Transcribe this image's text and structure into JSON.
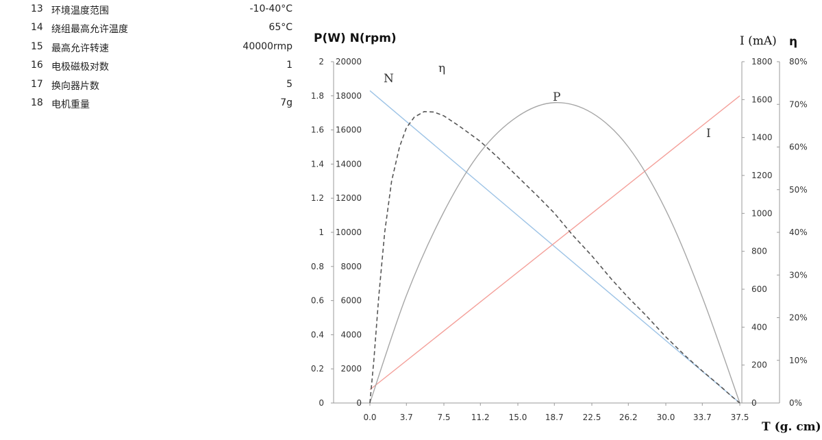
{
  "specs": [
    {
      "num": "13",
      "label": "环境温度范围",
      "value": "-10-40°C"
    },
    {
      "num": "14",
      "label": "绕组最高允许温度",
      "value": "65°C"
    },
    {
      "num": "15",
      "label": "最高允许转速",
      "value": "40000rmp"
    },
    {
      "num": "16",
      "label": "电极磁极对数",
      "value": "1"
    },
    {
      "num": "17",
      "label": "换向器片数",
      "value": "5"
    },
    {
      "num": "18",
      "label": "电机重量",
      "value": "7g"
    }
  ],
  "chart_data": {
    "type": "line",
    "axes": {
      "left_outer_title": "P(W) N(rpm)",
      "right_inner_title": "I (mA)",
      "right_outer_title": "η",
      "x_title": "T (g. cm)",
      "x_ticks": [
        "0.0",
        "3.7",
        "7.5",
        "11.2",
        "15.0",
        "18.7",
        "22.5",
        "26.2",
        "30.0",
        "33.7",
        "37.5"
      ],
      "x_range": [
        0,
        37.5
      ],
      "p_ticks": [
        "0",
        "0.2",
        "0.4",
        "0.6",
        "0.8",
        "1",
        "1.2",
        "1.4",
        "1.6",
        "1.8",
        "2"
      ],
      "p_range": [
        0,
        2
      ],
      "n_ticks": [
        "0",
        "2000",
        "4000",
        "6000",
        "8000",
        "10000",
        "12000",
        "14000",
        "16000",
        "18000",
        "20000"
      ],
      "n_range": [
        0,
        20000
      ],
      "i_ticks": [
        "0",
        "200",
        "400",
        "600",
        "800",
        "1000",
        "1200",
        "1400",
        "1600",
        "1800"
      ],
      "i_range": [
        0,
        1800
      ],
      "eta_ticks": [
        "0%",
        "10%",
        "20%",
        "30%",
        "40%",
        "50%",
        "60%",
        "70%",
        "80%"
      ],
      "eta_range": [
        0,
        80
      ]
    },
    "series": [
      {
        "name": "N",
        "axis": "n",
        "color": "#9dc3e6",
        "dash": false,
        "x": [
          0,
          37.5
        ],
        "y": [
          18300,
          0
        ]
      },
      {
        "name": "I",
        "axis": "i",
        "color": "#f4a09a",
        "dash": false,
        "x": [
          0,
          37.5
        ],
        "y": [
          70,
          1620
        ]
      },
      {
        "name": "P",
        "axis": "p",
        "color": "#a6a6a6",
        "dash": false,
        "x": [
          0,
          3.7,
          7.5,
          11.2,
          15.0,
          18.7,
          22.5,
          26.2,
          30.0,
          33.7,
          37.5
        ],
        "y": [
          0,
          0.63,
          1.12,
          1.47,
          1.68,
          1.76,
          1.7,
          1.5,
          1.13,
          0.62,
          0
        ]
      },
      {
        "name": "η",
        "axis": "eta",
        "color": "#555555",
        "dash": true,
        "x": [
          0,
          0.4,
          0.9,
          1.5,
          2.2,
          3.0,
          3.7,
          4.5,
          5.5,
          6.5,
          7.5,
          9.0,
          11.2,
          13.0,
          15.0,
          17.0,
          18.7,
          20.5,
          22.5,
          24.5,
          26.2,
          28.0,
          30.0,
          32.0,
          33.7,
          35.5,
          36.7,
          37.5
        ],
        "y": [
          0,
          10,
          25,
          40,
          52,
          60,
          64.5,
          67,
          68.3,
          68.2,
          67.3,
          65,
          61.3,
          57.5,
          53,
          48.5,
          44.5,
          39.5,
          34.5,
          29,
          24.7,
          20.5,
          15.5,
          11,
          7.5,
          4,
          1.5,
          0
        ]
      }
    ],
    "grid": false,
    "legend": "none"
  }
}
